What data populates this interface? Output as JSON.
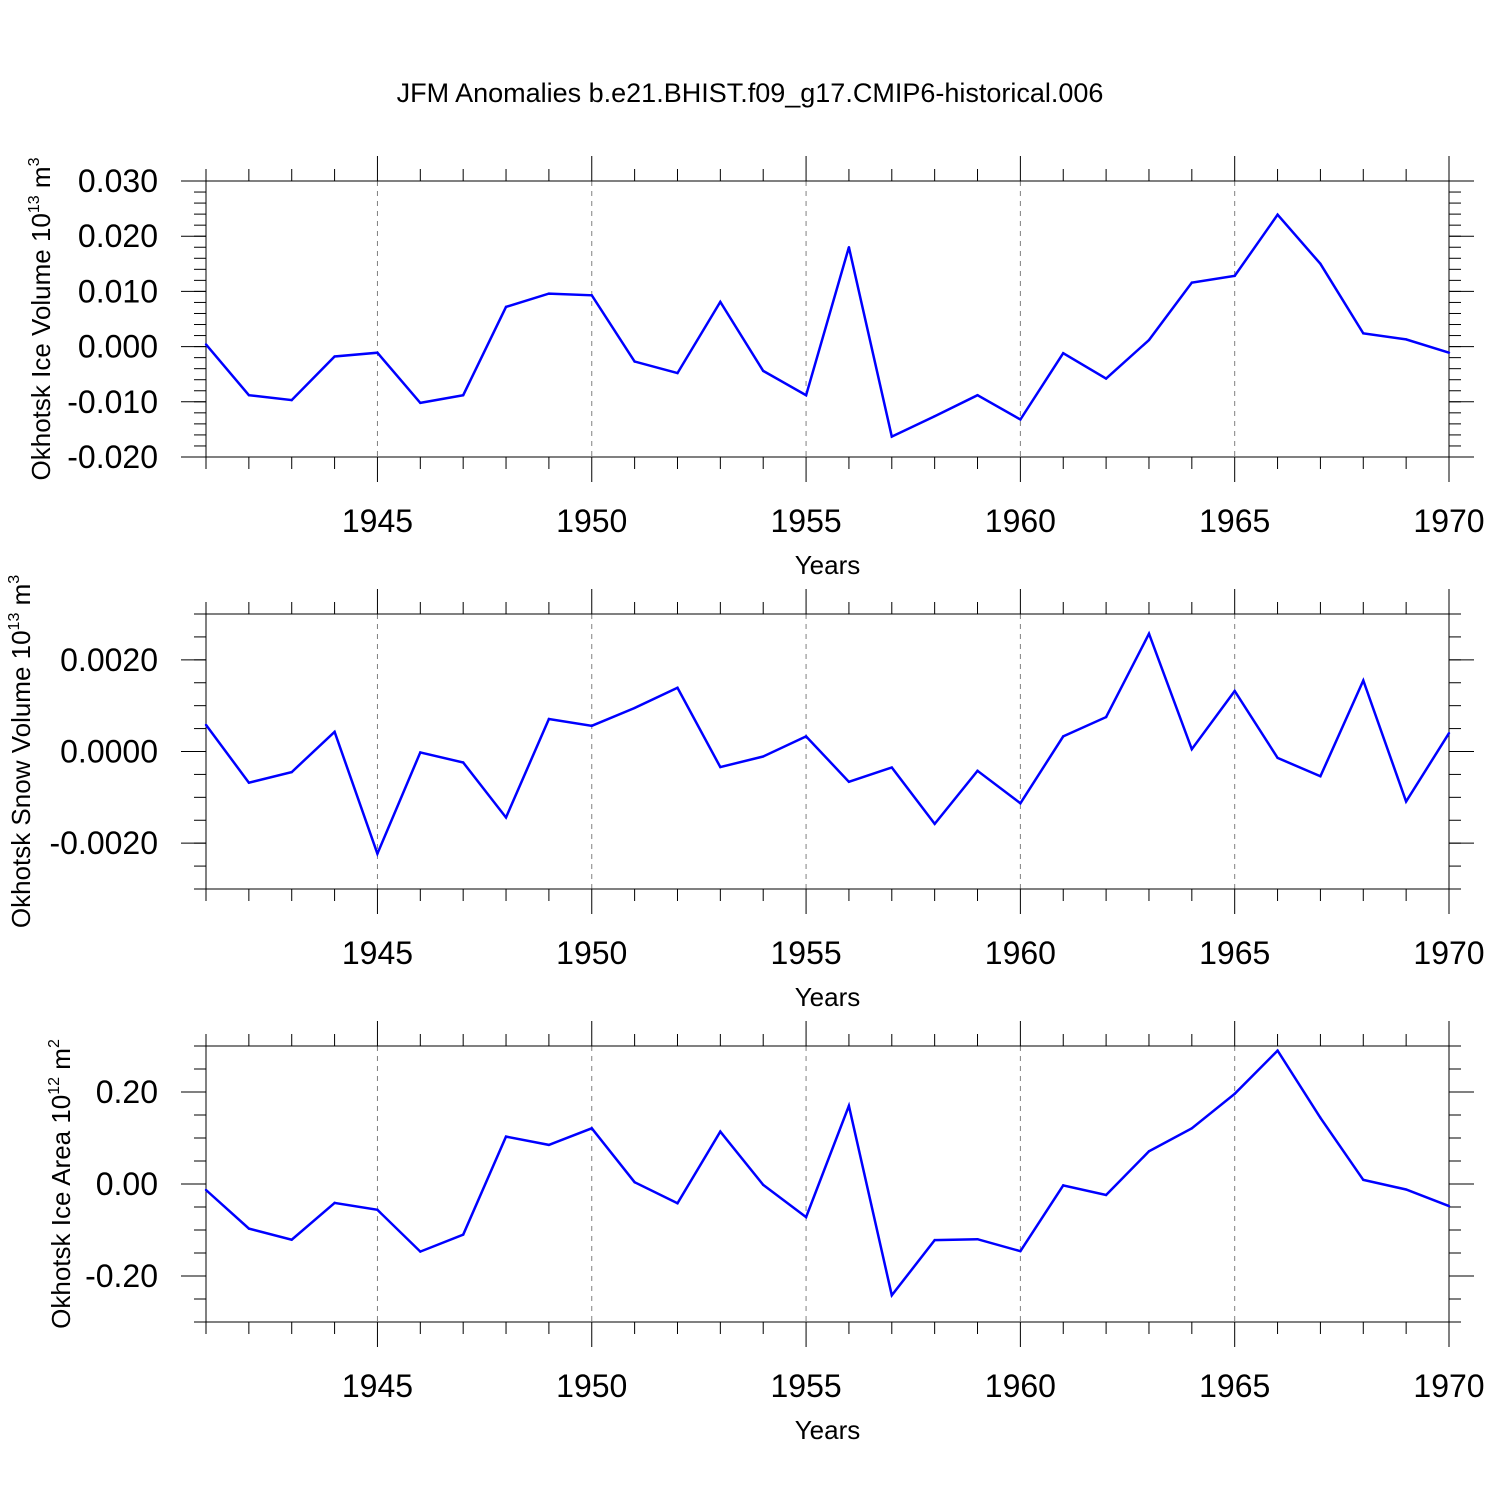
{
  "title": "JFM Anomalies b.e21.BHIST.f09_g17.CMIP6-historical.006",
  "colors": {
    "line": "#0000ff",
    "axis": "#000000",
    "grid": "#808080"
  },
  "chart_data": [
    {
      "type": "line",
      "name": "ice-volume",
      "ylabel": {
        "text": "Okhotsk Ice Volume 10",
        "sup": "13",
        "unit": " m",
        "unit_sup": "3"
      },
      "xlabel": "Years",
      "xlim": [
        1941,
        1970
      ],
      "ylim": [
        -0.02,
        0.03
      ],
      "major_y": [
        -0.02,
        -0.01,
        0.0,
        0.01,
        0.02,
        0.03
      ],
      "major_y_labels": [
        "-0.020",
        "-0.010",
        "0.000",
        "0.010",
        "0.020",
        "0.030"
      ],
      "minor_y_step": 0.002,
      "x_ticks": [
        1945,
        1950,
        1955,
        1960,
        1965,
        1970
      ],
      "x_tick_labels": [
        "1945",
        "1950",
        "1955",
        "1960",
        "1965",
        "1970"
      ],
      "x": [
        1941,
        1942,
        1943,
        1944,
        1945,
        1946,
        1947,
        1948,
        1949,
        1950,
        1951,
        1952,
        1953,
        1954,
        1955,
        1956,
        1957,
        1958,
        1959,
        1960,
        1961,
        1962,
        1963,
        1964,
        1965,
        1966,
        1967,
        1968,
        1969,
        1970
      ],
      "values": [
        0.0004,
        -0.0088,
        -0.0097,
        -0.0018,
        -0.0011,
        -0.0102,
        -0.0088,
        0.0072,
        0.0096,
        0.0093,
        -0.0027,
        -0.0048,
        0.0081,
        -0.0044,
        -0.0088,
        0.018,
        -0.0163,
        -0.0126,
        -0.0088,
        -0.0132,
        -0.0012,
        -0.0058,
        0.0012,
        0.0116,
        0.0128,
        0.0239,
        0.015,
        0.0024,
        0.0013,
        -0.0011
      ]
    },
    {
      "type": "line",
      "name": "snow-volume",
      "ylabel": {
        "text": "Okhotsk Snow Volume 10",
        "sup": "13",
        "unit": " m",
        "unit_sup": "3"
      },
      "xlabel": "Years",
      "xlim": [
        1941,
        1970
      ],
      "ylim": [
        -0.003,
        0.003
      ],
      "major_y": [
        -0.002,
        0.0,
        0.002
      ],
      "major_y_labels": [
        "-0.0020",
        "0.0000",
        "0.0020"
      ],
      "minor_y_step": 0.0005,
      "x_ticks": [
        1945,
        1950,
        1955,
        1960,
        1965,
        1970
      ],
      "x_tick_labels": [
        "1945",
        "1950",
        "1955",
        "1960",
        "1965",
        "1970"
      ],
      "x": [
        1941,
        1942,
        1943,
        1944,
        1945,
        1946,
        1947,
        1948,
        1949,
        1950,
        1951,
        1952,
        1953,
        1954,
        1955,
        1956,
        1957,
        1958,
        1959,
        1960,
        1961,
        1962,
        1963,
        1964,
        1965,
        1966,
        1967,
        1968,
        1969,
        1970
      ],
      "values": [
        0.00058,
        -0.00068,
        -0.00045,
        0.00043,
        -0.00223,
        -2e-05,
        -0.00024,
        -0.00144,
        0.00071,
        0.00056,
        0.00095,
        0.00139,
        -0.00034,
        -0.00011,
        0.00033,
        -0.00066,
        -0.00035,
        -0.00158,
        -0.00042,
        -0.00113,
        0.00033,
        0.00075,
        0.00257,
        5e-05,
        0.00132,
        -0.00014,
        -0.00054,
        0.00155,
        -0.00109,
        0.0004
      ]
    },
    {
      "type": "line",
      "name": "ice-area",
      "ylabel": {
        "text": "Okhotsk Ice Area 10",
        "sup": "12",
        "unit": " m",
        "unit_sup": "2"
      },
      "xlabel": "Years",
      "xlim": [
        1941,
        1970
      ],
      "ylim": [
        -0.3,
        0.3
      ],
      "major_y": [
        -0.2,
        0.0,
        0.2
      ],
      "major_y_labels": [
        "-0.20",
        "0.00",
        "0.20"
      ],
      "minor_y_step": 0.05,
      "x_ticks": [
        1945,
        1950,
        1955,
        1960,
        1965,
        1970
      ],
      "x_tick_labels": [
        "1945",
        "1950",
        "1955",
        "1960",
        "1965",
        "1970"
      ],
      "x": [
        1941,
        1942,
        1943,
        1944,
        1945,
        1946,
        1947,
        1948,
        1949,
        1950,
        1951,
        1952,
        1953,
        1954,
        1955,
        1956,
        1957,
        1958,
        1959,
        1960,
        1961,
        1962,
        1963,
        1964,
        1965,
        1966,
        1967,
        1968,
        1969,
        1970
      ],
      "values": [
        -0.013,
        -0.097,
        -0.121,
        -0.041,
        -0.056,
        -0.147,
        -0.11,
        0.103,
        0.085,
        0.121,
        0.004,
        -0.042,
        0.114,
        -0.002,
        -0.072,
        0.17,
        -0.242,
        -0.122,
        -0.12,
        -0.146,
        -0.003,
        -0.024,
        0.071,
        0.121,
        0.196,
        0.29,
        0.144,
        0.009,
        -0.012,
        -0.048
      ]
    }
  ]
}
